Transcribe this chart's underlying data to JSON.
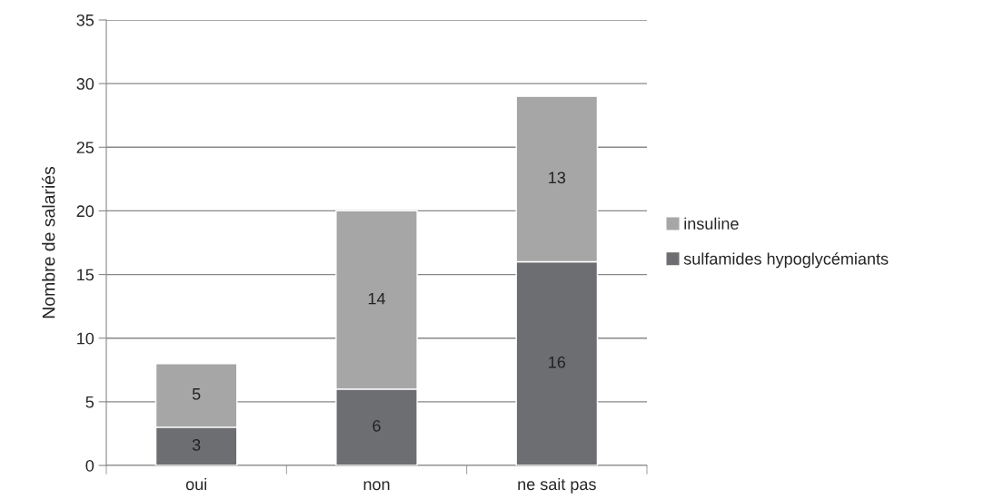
{
  "chart_data": {
    "type": "bar",
    "stacked": true,
    "ylabel": "Nombre de salariés",
    "categories": [
      "oui",
      "non",
      "ne sait pas"
    ],
    "series": [
      {
        "name": "sulfamides hypoglycémiants",
        "color": "#6d6e71",
        "values": [
          3,
          6,
          16
        ]
      },
      {
        "name": "insuline",
        "color": "#a6a6a6",
        "values": [
          5,
          14,
          13
        ]
      }
    ],
    "data_labels": true,
    "ylim": [
      0,
      35
    ],
    "yticks": [
      0,
      5,
      10,
      15,
      20,
      25,
      30,
      35
    ],
    "grid": "y",
    "legend": "right"
  }
}
